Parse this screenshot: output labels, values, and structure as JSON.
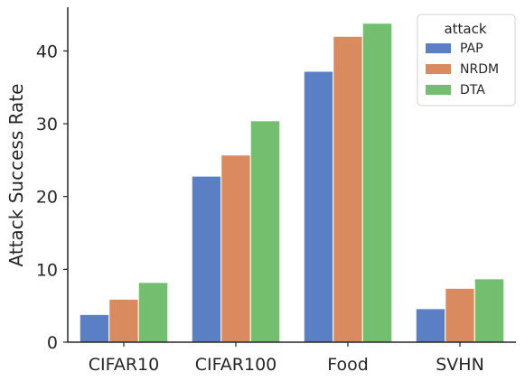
{
  "chart_data": {
    "type": "bar",
    "categories": [
      "CIFAR10",
      "CIFAR100",
      "Food",
      "SVHN"
    ],
    "series": [
      {
        "name": "PAP",
        "values": [
          3.8,
          22.8,
          37.2,
          4.6
        ],
        "color": "#5a7fc4"
      },
      {
        "name": "NRDM",
        "values": [
          5.9,
          25.7,
          42.0,
          7.4
        ],
        "color": "#d98b5f"
      },
      {
        "name": "DTA",
        "values": [
          8.2,
          30.4,
          43.8,
          8.7
        ],
        "color": "#74be6f"
      }
    ],
    "title": "",
    "xlabel": "",
    "ylabel": "Attack Success Rate",
    "ylim": [
      0,
      46
    ],
    "yticks": [
      0,
      10,
      20,
      30,
      40
    ],
    "grid": false,
    "legend": {
      "title": "attack",
      "placement": "top-right"
    }
  }
}
